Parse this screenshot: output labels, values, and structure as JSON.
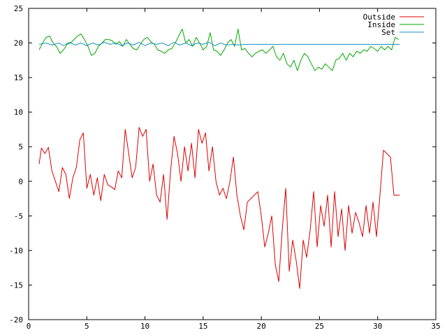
{
  "chart_data": {
    "type": "line",
    "xlabel": "",
    "ylabel": "",
    "xlim": [
      0,
      35
    ],
    "ylim": [
      -20,
      25
    ],
    "xticks": [
      0,
      5,
      10,
      15,
      20,
      25,
      30,
      35
    ],
    "yticks": [
      -20,
      -15,
      -10,
      -5,
      0,
      5,
      10,
      15,
      20,
      25
    ],
    "grid": false,
    "legend": "top-right",
    "series": [
      {
        "name": "Outside",
        "color": "#dd0000",
        "x": [
          0.9,
          1.1,
          1.4,
          1.7,
          2.0,
          2.3,
          2.6,
          2.9,
          3.2,
          3.5,
          3.8,
          4.1,
          4.4,
          4.7,
          5.0,
          5.3,
          5.6,
          5.9,
          6.2,
          6.5,
          6.8,
          7.1,
          7.4,
          7.7,
          8.0,
          8.3,
          8.6,
          8.9,
          9.2,
          9.5,
          9.8,
          10.1,
          10.4,
          10.7,
          11.0,
          11.3,
          11.6,
          11.9,
          12.2,
          12.5,
          12.8,
          13.1,
          13.4,
          13.7,
          14.0,
          14.3,
          14.6,
          14.9,
          15.2,
          15.5,
          15.8,
          16.1,
          16.4,
          16.7,
          17.0,
          17.3,
          17.6,
          17.9,
          18.2,
          18.5,
          18.8,
          19.1,
          19.4,
          19.7,
          20.0,
          20.3,
          20.6,
          20.9,
          21.2,
          21.5,
          21.8,
          22.1,
          22.4,
          22.7,
          23.0,
          23.3,
          23.6,
          23.9,
          24.2,
          24.5,
          24.8,
          25.1,
          25.4,
          25.7,
          26.0,
          26.3,
          26.6,
          26.9,
          27.2,
          27.5,
          27.8,
          28.1,
          28.4,
          28.7,
          29.0,
          29.3,
          29.6,
          29.9,
          30.2,
          30.5,
          30.8,
          31.1,
          31.4,
          31.7,
          31.9
        ],
        "values": [
          2.5,
          4.8,
          4.0,
          4.9,
          1.5,
          0.0,
          -1.5,
          2.0,
          1.0,
          -2.5,
          0.5,
          2.0,
          6.0,
          7.0,
          -1.0,
          1.0,
          -2.0,
          0.5,
          -2.8,
          1.0,
          -0.5,
          -0.8,
          -1.2,
          1.5,
          0.5,
          7.5,
          4.0,
          0.5,
          2.0,
          7.8,
          6.5,
          7.5,
          0.0,
          2.5,
          -2.0,
          -3.0,
          1.0,
          -5.5,
          1.5,
          6.5,
          4.0,
          0.0,
          5.0,
          1.5,
          5.5,
          0.5,
          7.5,
          5.5,
          7.0,
          1.5,
          5.0,
          0.0,
          -2.0,
          -1.0,
          -2.5,
          0.0,
          3.5,
          -2.0,
          -5.0,
          -7.0,
          -3.0,
          -2.5,
          -2.0,
          -1.5,
          -5.0,
          -9.5,
          -7.5,
          -5.0,
          -12.0,
          -14.5,
          -7.0,
          -1.0,
          -13.0,
          -8.5,
          -11.5,
          -15.5,
          -8.5,
          -11.0,
          -7.0,
          -1.5,
          -9.5,
          -3.5,
          -6.5,
          -2.0,
          -9.5,
          -1.5,
          -8.0,
          -4.0,
          -10.0,
          -3.5,
          -7.5,
          -4.5,
          -6.0,
          -8.0,
          -3.5,
          -7.5,
          -3.0,
          -8.0,
          -2.0,
          4.5,
          4.0,
          3.5,
          -2.0,
          -2.0,
          -2.0
        ]
      },
      {
        "name": "Inside",
        "color": "#00aa00",
        "x": [
          0.9,
          1.2,
          1.5,
          1.8,
          2.1,
          2.4,
          2.7,
          3.0,
          3.3,
          3.6,
          3.9,
          4.2,
          4.5,
          4.8,
          5.1,
          5.4,
          5.7,
          6.0,
          6.3,
          6.6,
          6.9,
          7.2,
          7.5,
          7.8,
          8.1,
          8.4,
          8.7,
          9.0,
          9.3,
          9.6,
          9.9,
          10.2,
          10.5,
          10.8,
          11.1,
          11.4,
          11.7,
          12.0,
          12.3,
          12.6,
          12.9,
          13.2,
          13.5,
          13.8,
          14.1,
          14.4,
          14.7,
          15.0,
          15.3,
          15.6,
          15.9,
          16.2,
          16.5,
          16.8,
          17.1,
          17.4,
          17.7,
          18.0,
          18.3,
          18.6,
          18.9,
          19.2,
          19.5,
          19.8,
          20.1,
          20.4,
          20.7,
          21.0,
          21.3,
          21.6,
          21.9,
          22.2,
          22.5,
          22.8,
          23.1,
          23.4,
          23.7,
          24.0,
          24.3,
          24.6,
          24.9,
          25.2,
          25.5,
          25.8,
          26.1,
          26.4,
          26.7,
          27.0,
          27.3,
          27.6,
          27.9,
          28.2,
          28.5,
          28.8,
          29.1,
          29.4,
          29.7,
          30.0,
          30.3,
          30.6,
          30.9,
          31.2,
          31.5,
          31.8
        ],
        "values": [
          19.0,
          20.0,
          20.8,
          21.0,
          20.0,
          19.5,
          18.5,
          19.0,
          19.8,
          20.0,
          20.5,
          21.0,
          21.3,
          20.5,
          19.5,
          18.2,
          18.5,
          19.5,
          20.0,
          20.5,
          20.5,
          20.3,
          19.8,
          20.2,
          19.5,
          20.5,
          19.8,
          19.2,
          19.0,
          19.8,
          20.5,
          20.8,
          20.2,
          19.8,
          19.0,
          18.8,
          18.5,
          19.0,
          19.2,
          20.0,
          21.0,
          22.0,
          20.0,
          20.5,
          19.5,
          20.8,
          20.0,
          19.0,
          19.5,
          21.5,
          19.0,
          18.8,
          18.2,
          19.0,
          20.0,
          20.5,
          19.5,
          22.0,
          19.0,
          19.2,
          18.5,
          18.0,
          18.5,
          18.8,
          19.0,
          18.5,
          19.0,
          19.5,
          18.0,
          17.5,
          18.5,
          17.0,
          16.5,
          17.5,
          16.0,
          17.5,
          18.5,
          18.0,
          17.0,
          16.0,
          16.5,
          16.2,
          17.0,
          16.5,
          16.0,
          17.5,
          17.8,
          18.5,
          17.5,
          18.5,
          18.0,
          18.8,
          18.5,
          19.0,
          18.8,
          19.5,
          19.2,
          18.8,
          19.5,
          19.0,
          19.5,
          19.0,
          20.8,
          20.5
        ]
      },
      {
        "name": "Set",
        "color": "#1a90c0",
        "x": [
          0.9,
          1.5,
          2.0,
          2.6,
          3.0,
          3.5,
          4.0,
          4.5,
          5.0,
          5.5,
          6.0,
          6.5,
          7.0,
          7.5,
          8.0,
          8.5,
          9.0,
          9.5,
          10.0,
          10.5,
          11.0,
          11.5,
          12.0,
          12.5,
          13.0,
          13.5,
          14.0,
          14.5,
          15.0,
          15.5,
          16.0,
          16.5,
          17.0,
          17.5,
          18.0,
          18.5,
          19.0,
          19.5,
          20.0,
          25.0,
          31.9
        ],
        "values": [
          19.8,
          20.0,
          19.7,
          20.0,
          19.6,
          20.1,
          19.7,
          20.0,
          19.6,
          20.0,
          19.7,
          20.1,
          19.8,
          20.0,
          19.6,
          20.0,
          19.7,
          20.1,
          19.6,
          20.0,
          19.8,
          20.0,
          19.6,
          20.1,
          19.7,
          20.0,
          19.6,
          20.0,
          19.8,
          20.1,
          19.6,
          20.0,
          19.7,
          19.8,
          19.7,
          19.8,
          19.8,
          19.8,
          19.8,
          19.8,
          19.8
        ]
      }
    ]
  }
}
